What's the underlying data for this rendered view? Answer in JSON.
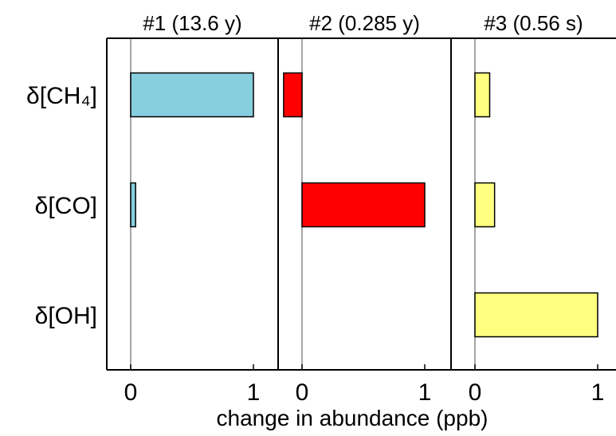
{
  "chart_data": {
    "type": "bar",
    "orientation": "horizontal",
    "xlabel": "change in abundance (ppb)",
    "categories": [
      "δ[CH₄]",
      "δ[CO]",
      "δ[OH]"
    ],
    "panels": [
      {
        "title": "#1 (13.6 y)",
        "color": "#87CEDF",
        "values": [
          1.0,
          0.04,
          0.0
        ],
        "xlim": [
          -0.2,
          1.2
        ],
        "ticks": [
          0,
          1
        ],
        "tick_labels": [
          "0",
          "1"
        ]
      },
      {
        "title": "#2 (0.285 y)",
        "color": "#FF0000",
        "values": [
          -0.15,
          1.0,
          0.0
        ],
        "xlim": [
          -0.2,
          1.2
        ],
        "ticks": [
          0,
          1
        ],
        "tick_labels": [
          "0",
          "1"
        ]
      },
      {
        "title": "#3 (0.56 s)",
        "color": "#FFFF80",
        "values": [
          0.12,
          0.16,
          1.0
        ],
        "xlim": [
          -0.2,
          1.2
        ],
        "ticks": [
          0,
          1
        ],
        "tick_labels": [
          "0",
          "1"
        ]
      }
    ],
    "grid": false,
    "legend": "none"
  }
}
